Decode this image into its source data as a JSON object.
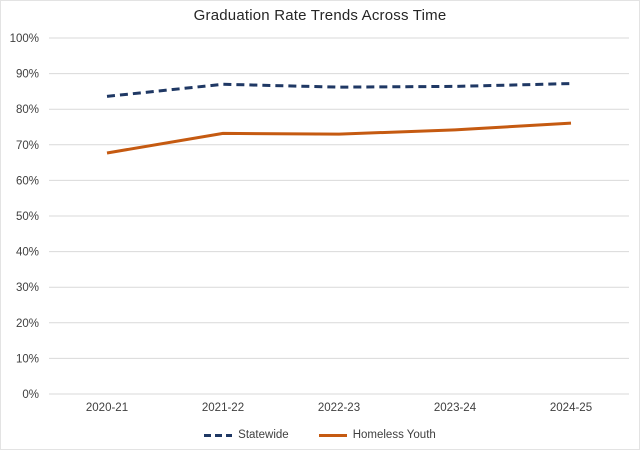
{
  "title": "Graduation Rate Trends Across Time",
  "chart_data": {
    "type": "line",
    "title": "Graduation Rate Trends Across Time",
    "categories": [
      "2020-21",
      "2021-22",
      "2022-23",
      "2023-24",
      "2024-25"
    ],
    "series": [
      {
        "name": "Statewide",
        "values": [
          83.6,
          87.0,
          86.2,
          86.4,
          87.2
        ],
        "color": "#1F3864",
        "dash": "dashed"
      },
      {
        "name": "Homeless Youth",
        "values": [
          67.7,
          73.2,
          73.0,
          74.2,
          76.1
        ],
        "color": "#C55A11",
        "dash": "solid"
      }
    ],
    "xlabel": "",
    "ylabel": "",
    "ylim": [
      0,
      100
    ],
    "ytick_step": 10,
    "ytick_format": "percent",
    "grid": true,
    "legend_position": "bottom"
  },
  "colors": {
    "gridline": "#D9D9D9",
    "tick_text": "#404040",
    "title_text": "#262626",
    "background": "#FFFFFF"
  }
}
